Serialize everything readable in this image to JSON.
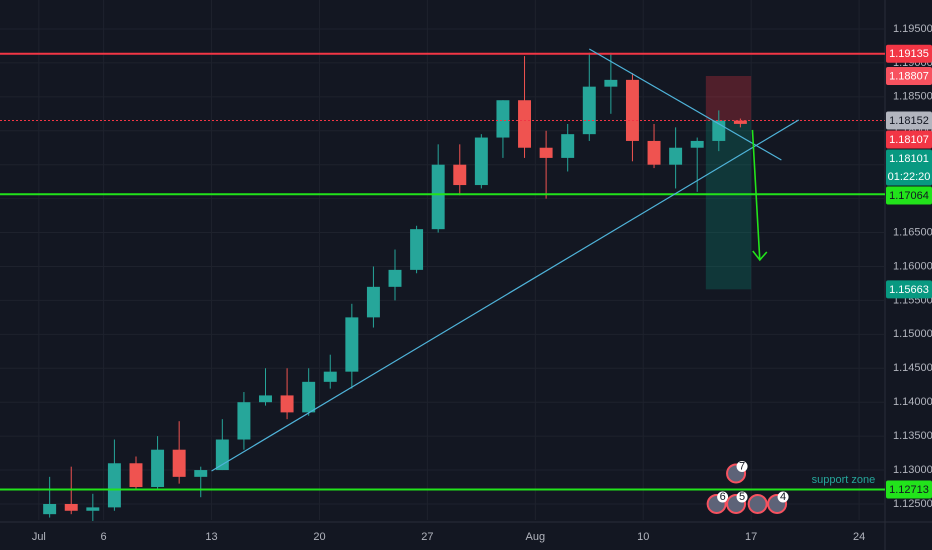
{
  "chart_data": {
    "type": "candlestick",
    "xlim": [
      -1.8,
      39.2
    ],
    "ylim": [
      1.12264,
      1.19927
    ],
    "xticks": [
      {
        "value": 0,
        "label": "Jul"
      },
      {
        "value": 3,
        "label": "6"
      },
      {
        "value": 8,
        "label": "13"
      },
      {
        "value": 13,
        "label": "20"
      },
      {
        "value": 18,
        "label": "27"
      },
      {
        "value": 23,
        "label": "Aug"
      },
      {
        "value": 28,
        "label": "10"
      },
      {
        "value": 33,
        "label": "17"
      },
      {
        "value": 38,
        "label": "24"
      }
    ],
    "yticks": [
      {
        "value": 1.125,
        "label": "1.12500"
      },
      {
        "value": 1.13,
        "label": "1.13000"
      },
      {
        "value": 1.135,
        "label": "1.13500"
      },
      {
        "value": 1.14,
        "label": "1.14000"
      },
      {
        "value": 1.145,
        "label": "1.14500"
      },
      {
        "value": 1.15,
        "label": "1.15000"
      },
      {
        "value": 1.155,
        "label": "1.15500"
      },
      {
        "value": 1.16,
        "label": "1.16000"
      },
      {
        "value": 1.165,
        "label": "1.16500"
      },
      {
        "value": 1.17,
        "label": "1.17000"
      },
      {
        "value": 1.175,
        "label": "1.17500"
      },
      {
        "value": 1.18,
        "label": "1.18000"
      },
      {
        "value": 1.185,
        "label": "1.18500"
      },
      {
        "value": 1.19,
        "label": "1.19000"
      },
      {
        "value": 1.195,
        "label": "1.19500"
      }
    ],
    "grid": true,
    "up_color": "#26a69a",
    "down_color": "#ef5350",
    "candles": {
      "x": [
        0.5,
        1.5,
        2.5,
        3.5,
        4.5,
        5.5,
        6.5,
        7.5,
        8.5,
        9.5,
        10.5,
        11.5,
        12.5,
        13.5,
        14.5,
        15.5,
        16.5,
        17.5,
        18.5,
        19.5,
        20.5,
        21.5,
        22.5,
        23.5,
        24.5,
        25.5,
        26.5,
        27.5,
        28.5,
        29.5,
        30.5,
        31.5,
        32.5
      ],
      "open": [
        1.1235,
        1.125,
        1.124,
        1.1245,
        1.131,
        1.1275,
        1.133,
        1.129,
        1.13,
        1.1345,
        1.14,
        1.141,
        1.1385,
        1.143,
        1.1445,
        1.1525,
        1.157,
        1.1595,
        1.1655,
        1.175,
        1.172,
        1.179,
        1.1845,
        1.1775,
        1.176,
        1.1795,
        1.1865,
        1.1875,
        1.1785,
        1.175,
        1.1775,
        1.1785,
        1.1815
      ],
      "high": [
        1.129,
        1.1305,
        1.1265,
        1.1345,
        1.132,
        1.135,
        1.1372,
        1.1305,
        1.1375,
        1.1415,
        1.145,
        1.145,
        1.145,
        1.147,
        1.1545,
        1.16,
        1.1625,
        1.166,
        1.178,
        1.178,
        1.1795,
        1.1845,
        1.191,
        1.18,
        1.181,
        1.1915,
        1.1915,
        1.1885,
        1.181,
        1.1805,
        1.179,
        1.183,
        1.1818
      ],
      "low": [
        1.123,
        1.1235,
        1.1225,
        1.124,
        1.127,
        1.127,
        1.128,
        1.126,
        1.13,
        1.133,
        1.1395,
        1.1375,
        1.138,
        1.142,
        1.142,
        1.151,
        1.155,
        1.159,
        1.165,
        1.1705,
        1.1715,
        1.176,
        1.176,
        1.17,
        1.174,
        1.1785,
        1.1825,
        1.1755,
        1.1745,
        1.1715,
        1.171,
        1.177,
        1.1805
      ],
      "close": [
        1.125,
        1.124,
        1.1245,
        1.131,
        1.1275,
        1.133,
        1.129,
        1.13,
        1.1345,
        1.14,
        1.141,
        1.1385,
        1.143,
        1.1445,
        1.1525,
        1.157,
        1.1595,
        1.1655,
        1.175,
        1.172,
        1.179,
        1.1845,
        1.1775,
        1.176,
        1.1795,
        1.1865,
        1.1875,
        1.1785,
        1.175,
        1.1775,
        1.1785,
        1.1815,
        1.18101
      ]
    },
    "levels": [
      {
        "value": 1.19135,
        "label": "1.19135",
        "color": "#f23645",
        "style": "solid"
      },
      {
        "value": 1.17064,
        "label": "1.17064",
        "color": "#22e31b",
        "style": "solid"
      },
      {
        "value": 1.12713,
        "label": "1.12713",
        "color": "#22e31b",
        "style": "solid"
      }
    ],
    "position": {
      "x": [
        30.9,
        33.0
      ],
      "stop": {
        "value": 1.18807,
        "label": "1.18807",
        "color": "#f7525f"
      },
      "entry": {
        "value": 1.18152,
        "label": "1.18152",
        "color": "#b2b5be"
      },
      "target": {
        "value": 1.15663,
        "label": "1.15663",
        "color": "#089981"
      }
    },
    "markers": [
      {
        "value": 1.18107,
        "label": "1.18107",
        "color": "#f23645"
      }
    ],
    "last_price": {
      "value": 1.18101,
      "label": "1.18101",
      "countdown": "01:22:20",
      "color": "#089981"
    },
    "trendlines": [
      {
        "x": [
          25.5,
          34.4
        ],
        "y": [
          1.19205,
          1.17569
        ],
        "color": "#4fb3d9"
      },
      {
        "x": [
          8.0,
          35.2
        ],
        "y": [
          1.12986,
          1.18159
        ],
        "color": "#4fb3d9"
      }
    ],
    "arrow": {
      "x": [
        33.06,
        33.4
      ],
      "y": [
        1.18012,
        1.16096
      ],
      "color": "#22e31b"
    },
    "annotation": {
      "text": "support zone",
      "x": 35.8,
      "y": 1.1285,
      "color": "#26a69a"
    },
    "events": [
      {
        "x": 32.3,
        "y": 1.1295,
        "label": "7"
      },
      {
        "x": 31.4,
        "y": 1.125,
        "label": "6"
      },
      {
        "x": 32.3,
        "y": 1.125,
        "label": "5"
      },
      {
        "x": 33.3,
        "y": 1.125,
        "label": null
      },
      {
        "x": 34.2,
        "y": 1.125,
        "label": "4"
      }
    ]
  }
}
